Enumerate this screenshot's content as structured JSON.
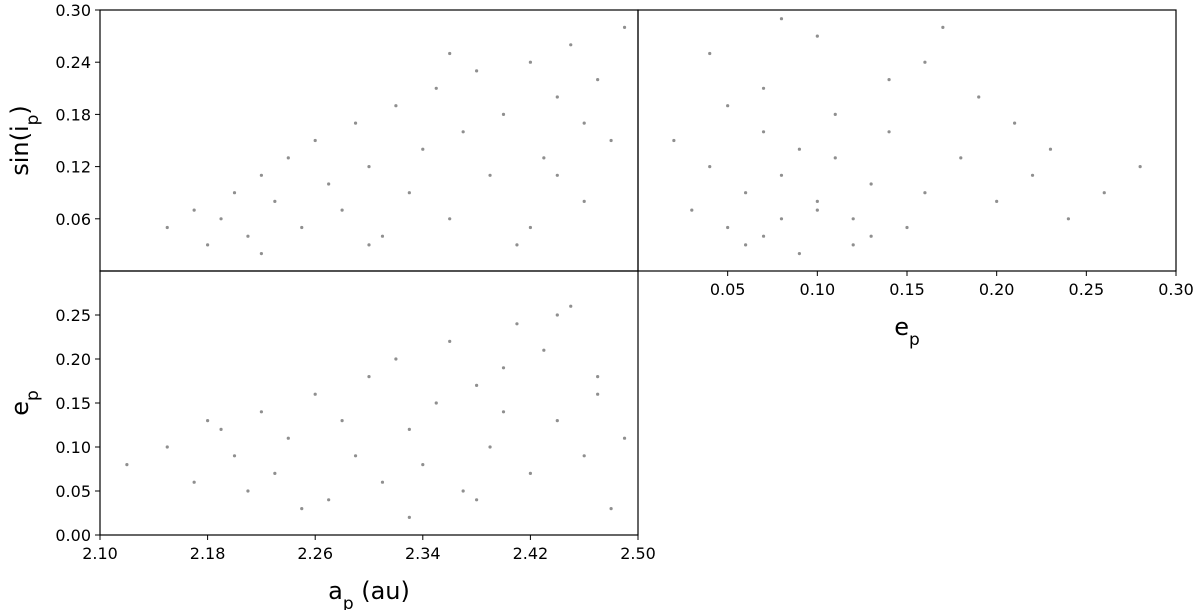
{
  "chart_data": [
    {
      "type": "scatter",
      "ylabel": [
        "sin(i",
        "p",
        ")"
      ],
      "xlim": [
        2.1,
        2.5
      ],
      "ylim": [
        0,
        0.3
      ],
      "yticks": [
        0.06,
        0.12,
        0.18,
        0.24,
        {
          "value": 0.3,
          "label": "0.30"
        }
      ],
      "series": [
        {
          "color": "#333333",
          "x": [
            2.15,
            2.17,
            2.19,
            2.2,
            2.21,
            2.22,
            2.23,
            2.24,
            2.25,
            2.26,
            2.27,
            2.28,
            2.29,
            2.3,
            2.31,
            2.32,
            2.33,
            2.34,
            2.35,
            2.36,
            2.37,
            2.38,
            2.39,
            2.4,
            2.41,
            2.42,
            2.43,
            2.44,
            2.45,
            2.46,
            2.47,
            2.48,
            2.49,
            2.18,
            2.22,
            2.3,
            2.36,
            2.42,
            2.46,
            2.44
          ],
          "values": [
            0.05,
            0.07,
            0.06,
            0.09,
            0.04,
            0.11,
            0.08,
            0.13,
            0.05,
            0.15,
            0.1,
            0.07,
            0.17,
            0.12,
            0.04,
            0.19,
            0.09,
            0.14,
            0.21,
            0.06,
            0.16,
            0.23,
            0.11,
            0.18,
            0.03,
            0.24,
            0.13,
            0.2,
            0.26,
            0.08,
            0.22,
            0.15,
            0.28,
            0.03,
            0.02,
            0.03,
            0.25,
            0.05,
            0.17,
            0.11
          ]
        }
      ]
    },
    {
      "type": "scatter",
      "xlabel": [
        "e",
        "p"
      ],
      "xlim": [
        0,
        0.3
      ],
      "xticks": [
        0.05,
        {
          "value": 0.1,
          "label": "0.10"
        },
        0.15,
        {
          "value": 0.2,
          "label": "0.20"
        },
        0.25,
        {
          "value": 0.3,
          "label": "0.30"
        }
      ],
      "ylim": [
        0,
        0.3
      ],
      "series": [
        {
          "color": "#333333",
          "x": [
            0.05,
            0.07,
            0.08,
            0.06,
            0.1,
            0.12,
            0.04,
            0.09,
            0.15,
            0.11,
            0.13,
            0.03,
            0.18,
            0.2,
            0.07,
            0.16,
            0.22,
            0.14,
            0.24,
            0.02,
            0.1,
            0.08,
            0.19,
            0.26,
            0.05,
            0.12,
            0.17,
            0.06,
            0.09,
            0.21,
            0.11,
            0.14,
            0.28,
            0.04,
            0.13,
            0.16,
            0.08,
            0.23,
            0.1,
            0.07
          ],
          "values": [
            0.05,
            0.04,
            0.06,
            0.09,
            0.08,
            0.03,
            0.12,
            0.14,
            0.05,
            0.18,
            0.1,
            0.07,
            0.13,
            0.08,
            0.21,
            0.24,
            0.11,
            0.16,
            0.06,
            0.15,
            0.27,
            0.11,
            0.2,
            0.09,
            0.19,
            0.06,
            0.28,
            0.03,
            0.02,
            0.17,
            0.13,
            0.22,
            0.12,
            0.25,
            0.04,
            0.09,
            0.29,
            0.14,
            0.07,
            0.16
          ]
        }
      ]
    },
    {
      "type": "scatter",
      "xlabel": [
        "a",
        "p",
        " (au)"
      ],
      "ylabel": [
        "e",
        "p"
      ],
      "xlim": [
        2.1,
        2.5
      ],
      "xticks": [
        {
          "value": 2.1,
          "label": "2.10"
        },
        2.18,
        2.26,
        2.34,
        2.42,
        {
          "value": 2.5,
          "label": "2.50"
        }
      ],
      "ylim": [
        0,
        0.3
      ],
      "yticks": [
        {
          "value": 0,
          "label": "0.00"
        },
        0.05,
        {
          "value": 0.1,
          "label": "0.10"
        },
        0.15,
        {
          "value": 0.2,
          "label": "0.20"
        },
        0.25
      ],
      "series": [
        {
          "color": "#333333",
          "x": [
            2.12,
            2.15,
            2.17,
            2.19,
            2.2,
            2.21,
            2.22,
            2.23,
            2.24,
            2.26,
            2.27,
            2.28,
            2.29,
            2.3,
            2.31,
            2.32,
            2.33,
            2.34,
            2.35,
            2.36,
            2.37,
            2.38,
            2.39,
            2.4,
            2.41,
            2.42,
            2.43,
            2.44,
            2.45,
            2.46,
            2.47,
            2.48,
            2.49,
            2.18,
            2.25,
            2.33,
            2.44,
            2.4,
            2.47,
            2.38
          ],
          "values": [
            0.08,
            0.1,
            0.06,
            0.12,
            0.09,
            0.05,
            0.14,
            0.07,
            0.11,
            0.16,
            0.04,
            0.13,
            0.09,
            0.18,
            0.06,
            0.2,
            0.12,
            0.08,
            0.15,
            0.22,
            0.05,
            0.17,
            0.1,
            0.19,
            0.24,
            0.07,
            0.21,
            0.13,
            0.26,
            0.09,
            0.16,
            0.03,
            0.11,
            0.13,
            0.03,
            0.02,
            0.25,
            0.14,
            0.18,
            0.04
          ]
        }
      ]
    }
  ]
}
